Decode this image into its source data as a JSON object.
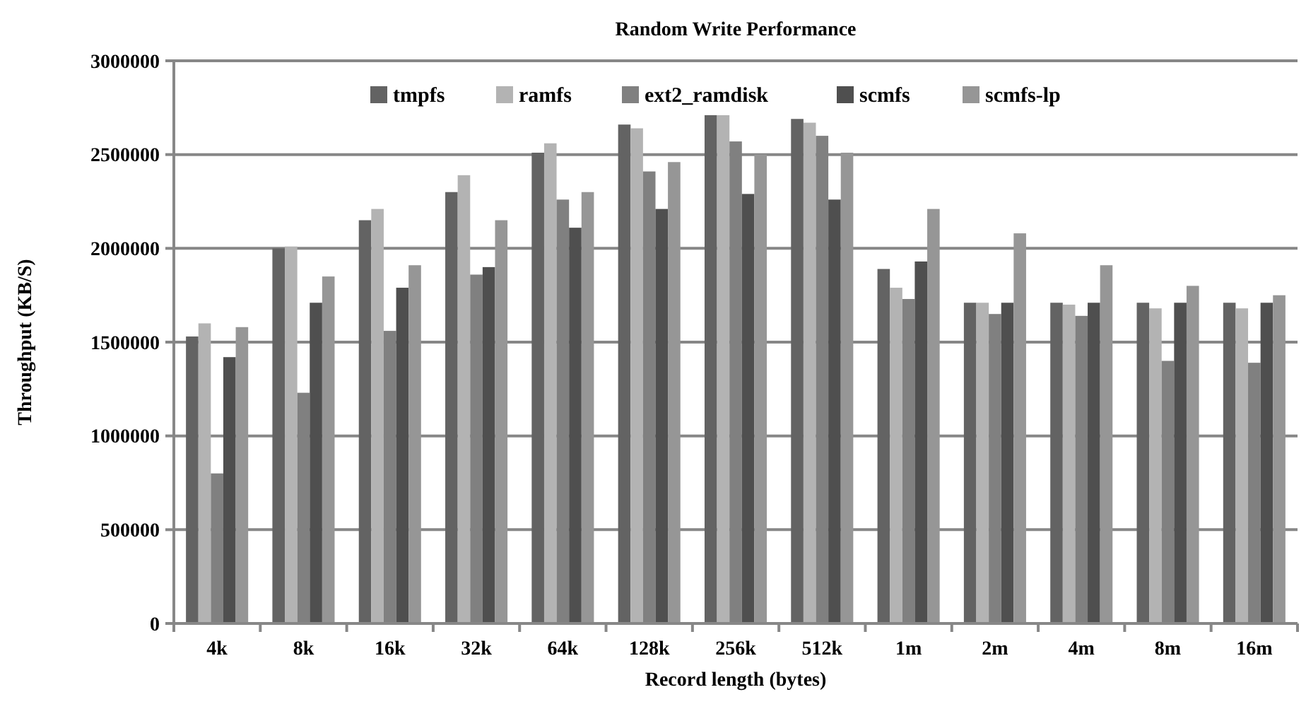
{
  "chart_data": {
    "type": "bar",
    "title": "Random Write Performance",
    "xlabel": "Record length (bytes)",
    "ylabel": "Throughput (KB/S)",
    "categories": [
      "4k",
      "8k",
      "16k",
      "32k",
      "64k",
      "128k",
      "256k",
      "512k",
      "1m",
      "2m",
      "4m",
      "8m",
      "16m"
    ],
    "series": [
      {
        "name": "tmpfs",
        "color": "#636363",
        "values": [
          1530000,
          2000000,
          2150000,
          2300000,
          2510000,
          2660000,
          2710000,
          2690000,
          1890000,
          1710000,
          1710000,
          1710000,
          1710000
        ]
      },
      {
        "name": "ramfs",
        "color": "#b3b3b3",
        "values": [
          1600000,
          2010000,
          2210000,
          2390000,
          2560000,
          2640000,
          2710000,
          2670000,
          1790000,
          1710000,
          1700000,
          1680000,
          1680000
        ]
      },
      {
        "name": "ext2_ramdisk",
        "color": "#808080",
        "values": [
          800000,
          1230000,
          1560000,
          1860000,
          2260000,
          2410000,
          2570000,
          2600000,
          1730000,
          1650000,
          1640000,
          1400000,
          1390000
        ]
      },
      {
        "name": "scmfs",
        "color": "#4f4f4f",
        "values": [
          1420000,
          1710000,
          1790000,
          1900000,
          2110000,
          2210000,
          2290000,
          2260000,
          1930000,
          1710000,
          1710000,
          1710000,
          1710000
        ]
      },
      {
        "name": "scmfs-lp",
        "color": "#969696",
        "values": [
          1580000,
          1850000,
          1910000,
          2150000,
          2300000,
          2460000,
          2500000,
          2510000,
          2210000,
          2080000,
          1910000,
          1800000,
          1750000
        ]
      }
    ],
    "ylim": [
      0,
      3000000
    ],
    "yticks": [
      0,
      500000,
      1000000,
      1500000,
      2000000,
      2500000,
      3000000
    ],
    "grid": "y",
    "legend": "top"
  }
}
